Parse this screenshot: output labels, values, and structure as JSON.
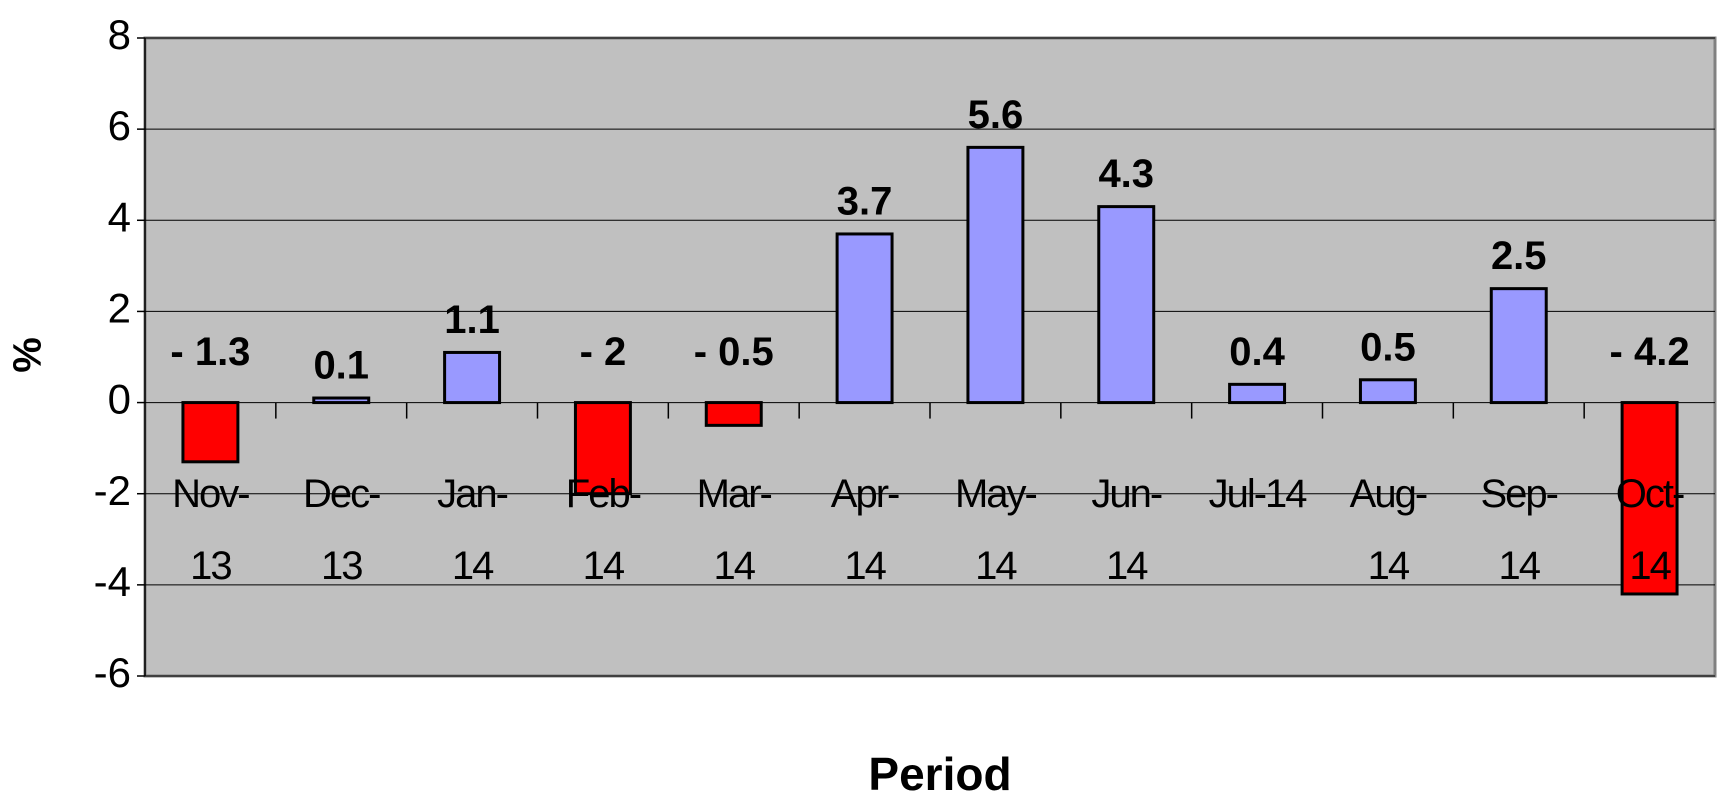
{
  "chart_data": {
    "type": "bar",
    "categories": [
      "Nov-13",
      "Dec-13",
      "Jan-14",
      "Feb-14",
      "Mar-14",
      "Apr-14",
      "May-14",
      "Jun-14",
      "Jul-14",
      "Aug-14",
      "Sep-14",
      "Oct-14"
    ],
    "values": [
      -1.3,
      0.1,
      1.1,
      -2,
      -0.5,
      3.7,
      5.6,
      4.3,
      0.4,
      0.5,
      2.5,
      -4.2
    ],
    "value_labels": [
      "- 1.3",
      "0.1",
      "1.1",
      "- 2",
      "- 0.5",
      "3.7",
      "5.6",
      "4.3",
      "0.4",
      "0.5",
      "2.5",
      "- 4.2"
    ],
    "positive_color": "#9999ff",
    "negative_color": "#ff0000",
    "xlabel": "Period",
    "ylabel": "%",
    "ylim": [
      -6,
      8
    ],
    "yticks": [
      -6,
      -4,
      -2,
      0,
      2,
      4,
      6,
      8
    ],
    "grid": true
  }
}
